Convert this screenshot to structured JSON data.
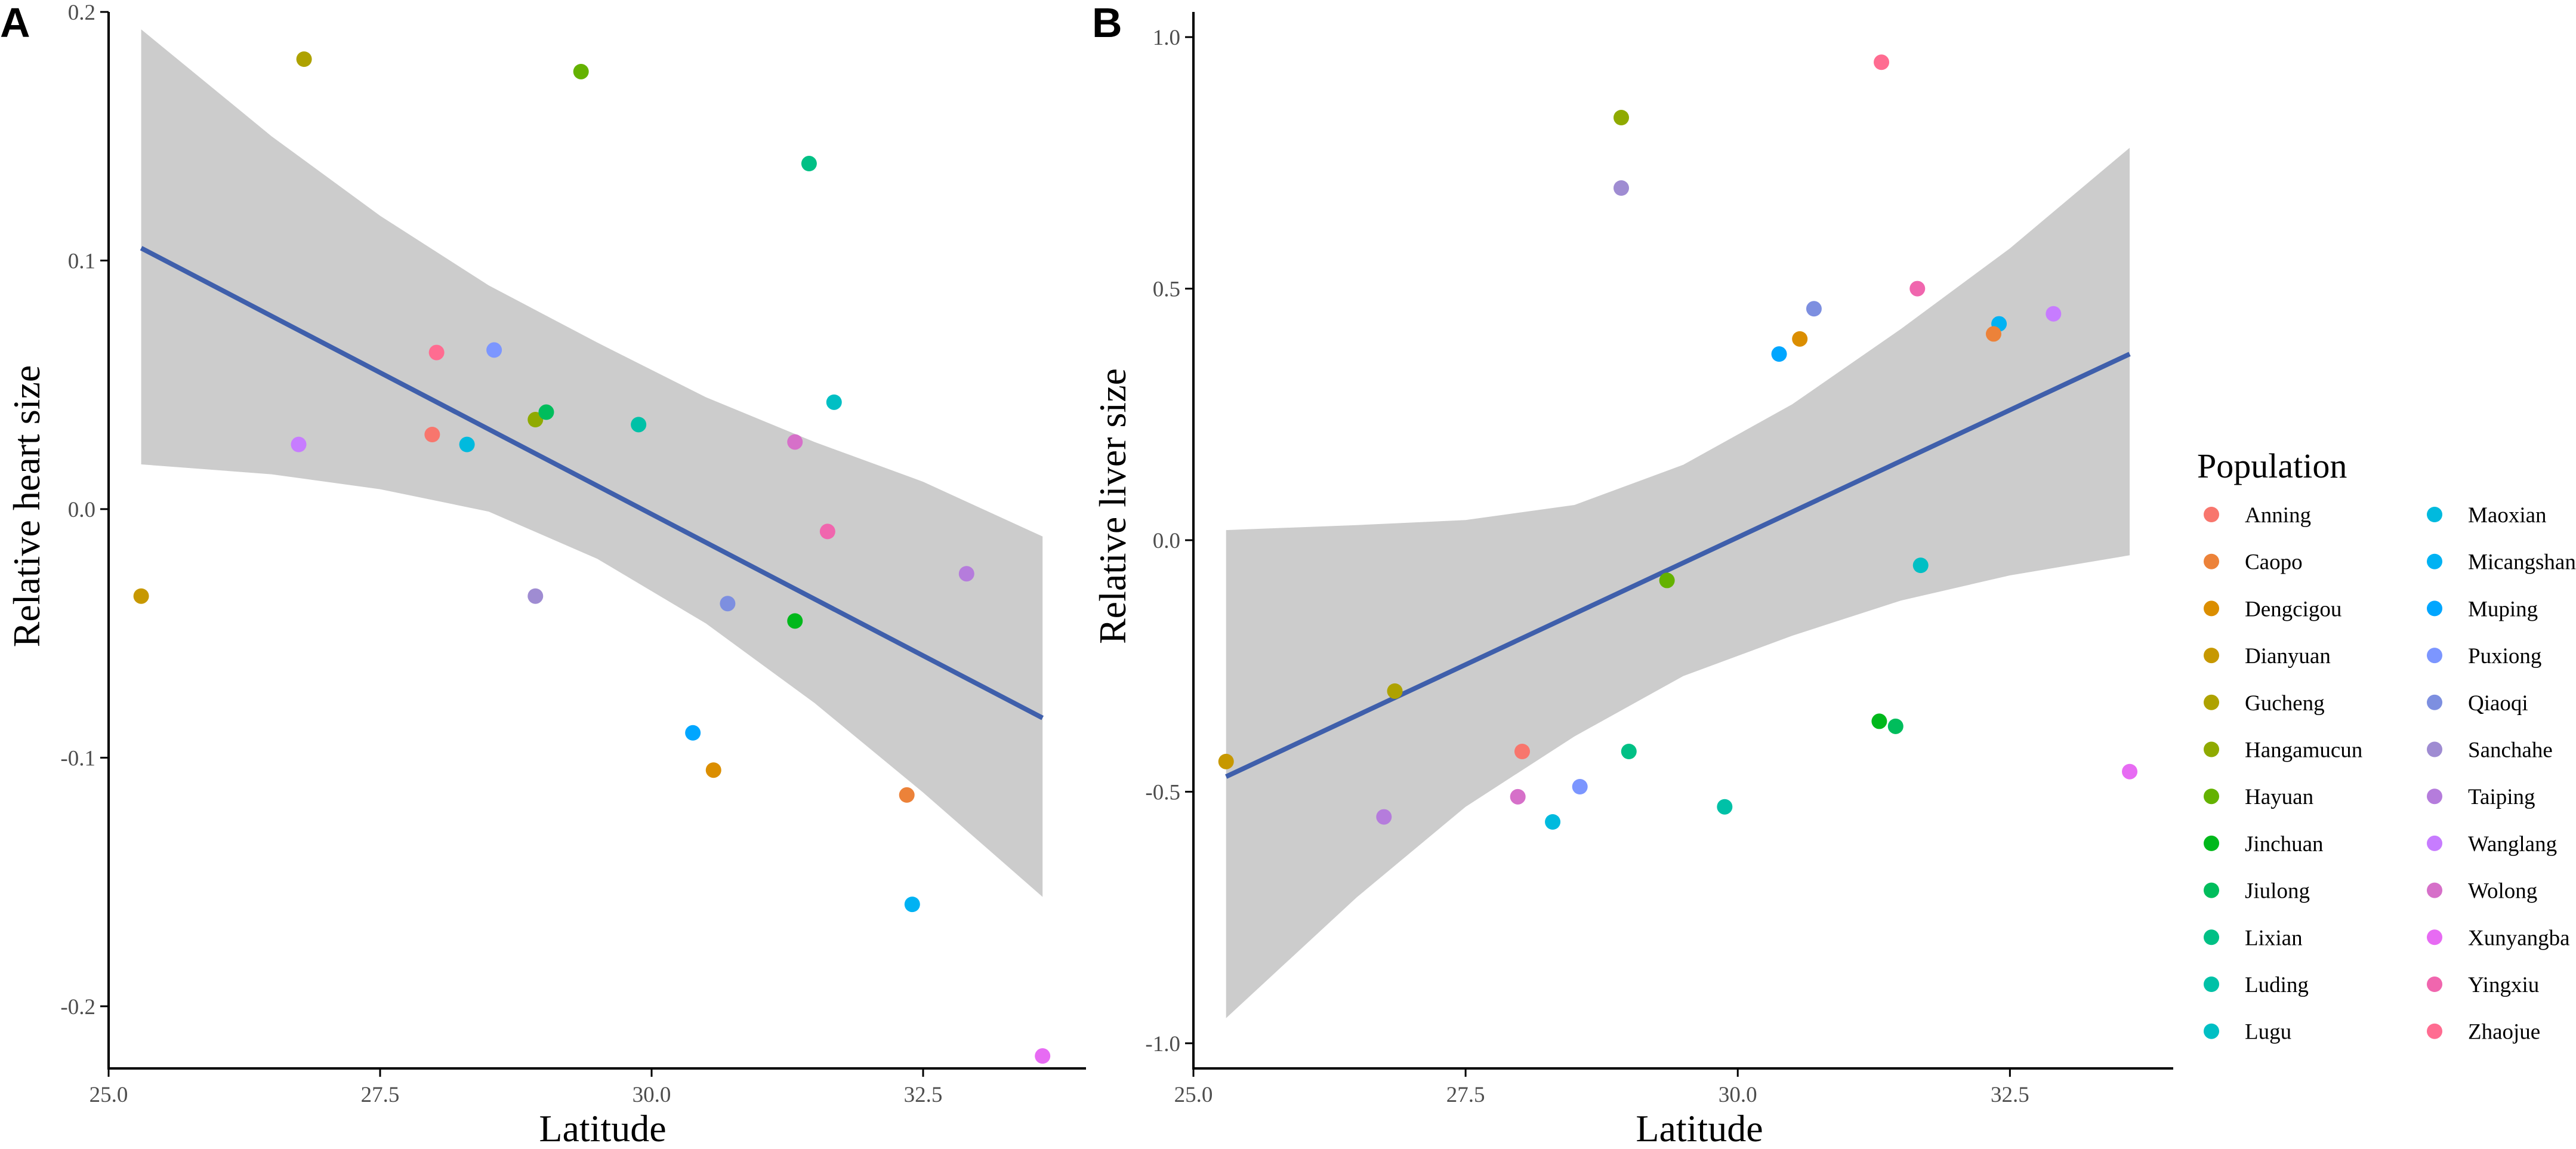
{
  "chart_data": [
    {
      "panel": "A",
      "type": "scatter",
      "xlabel": "Latitude",
      "ylabel": "Relative heart size",
      "xlim": [
        25.0,
        34.0
      ],
      "ylim": [
        -0.225,
        0.2
      ],
      "xticks": [
        25.0,
        27.5,
        30.0,
        32.5
      ],
      "xtick_labels": [
        "25.0",
        "27.5",
        "30.0",
        "32.5"
      ],
      "yticks": [
        -0.2,
        -0.1,
        0.0,
        0.1,
        0.2
      ],
      "ytick_labels": [
        "-0.2",
        "-0.1",
        "0.0",
        "0.1",
        "0.2"
      ],
      "fit": {
        "x": [
          25.3,
          33.6
        ],
        "y": [
          0.105,
          -0.084
        ]
      },
      "band": {
        "x": [
          25.3,
          26.5,
          27.5,
          28.5,
          29.5,
          30.5,
          31.5,
          32.5,
          33.6
        ],
        "upper": [
          0.193,
          0.15,
          0.118,
          0.09,
          0.067,
          0.045,
          0.027,
          0.011,
          -0.011
        ],
        "lower": [
          0.018,
          0.014,
          0.008,
          -0.001,
          -0.02,
          -0.046,
          -0.078,
          -0.114,
          -0.156
        ]
      },
      "points": [
        {
          "population": "Anning",
          "x": 27.98,
          "y": 0.03
        },
        {
          "population": "Dianyuan",
          "x": 25.3,
          "y": -0.035
        },
        {
          "population": "Gucheng",
          "x": 26.8,
          "y": 0.181
        },
        {
          "population": "Hayuan",
          "x": 29.35,
          "y": 0.176
        },
        {
          "population": "Lixian",
          "x": 31.45,
          "y": 0.139
        },
        {
          "population": "Zhaojue",
          "x": 28.02,
          "y": 0.063
        },
        {
          "population": "Puxiong",
          "x": 28.55,
          "y": 0.064
        },
        {
          "population": "Wanglang",
          "x": 26.75,
          "y": 0.026
        },
        {
          "population": "Maoxian",
          "x": 28.3,
          "y": 0.026
        },
        {
          "population": "Hangamucun",
          "x": 28.93,
          "y": 0.036
        },
        {
          "population": "Jiulong",
          "x": 29.03,
          "y": 0.039
        },
        {
          "population": "Luding",
          "x": 29.88,
          "y": 0.034
        },
        {
          "population": "Lugu",
          "x": 31.68,
          "y": 0.043
        },
        {
          "population": "Wolong",
          "x": 31.32,
          "y": 0.027
        },
        {
          "population": "Yingxiu",
          "x": 31.62,
          "y": -0.009
        },
        {
          "population": "Taiping",
          "x": 32.9,
          "y": -0.026
        },
        {
          "population": "Sanchahe",
          "x": 28.93,
          "y": -0.035
        },
        {
          "population": "Qiaoqi",
          "x": 30.7,
          "y": -0.038
        },
        {
          "population": "Jinchuan",
          "x": 31.32,
          "y": -0.045
        },
        {
          "population": "Muping",
          "x": 30.38,
          "y": -0.09
        },
        {
          "population": "Dengcigou",
          "x": 30.57,
          "y": -0.105
        },
        {
          "population": "Caopo",
          "x": 32.35,
          "y": -0.115
        },
        {
          "population": "Micangshan",
          "x": 32.4,
          "y": -0.159
        },
        {
          "population": "Xunyangba",
          "x": 33.6,
          "y": -0.22
        }
      ]
    },
    {
      "panel": "B",
      "type": "scatter",
      "xlabel": "Latitude",
      "ylabel": "Relative liver size",
      "xlim": [
        25.0,
        34.0
      ],
      "ylim": [
        -1.05,
        1.05
      ],
      "xticks": [
        25.0,
        27.5,
        30.0,
        32.5
      ],
      "xtick_labels": [
        "25.0",
        "27.5",
        "30.0",
        "32.5"
      ],
      "yticks": [
        -1.0,
        -0.5,
        0.0,
        0.5,
        1.0
      ],
      "ytick_labels": [
        "-1.0",
        "-0.5",
        "0.0",
        "0.5",
        "1.0"
      ],
      "fit": {
        "x": [
          25.3,
          33.6
        ],
        "y": [
          -0.47,
          0.37
        ]
      },
      "band": {
        "x": [
          25.3,
          26.5,
          27.5,
          28.5,
          29.5,
          30.5,
          31.5,
          32.5,
          33.6
        ],
        "upper": [
          0.02,
          0.03,
          0.04,
          0.07,
          0.15,
          0.27,
          0.42,
          0.58,
          0.78
        ],
        "lower": [
          -0.95,
          -0.71,
          -0.53,
          -0.39,
          -0.27,
          -0.19,
          -0.12,
          -0.07,
          -0.03
        ]
      },
      "points": [
        {
          "population": "Zhaojue",
          "x": 31.32,
          "y": 0.95
        },
        {
          "population": "Hangamucun",
          "x": 28.93,
          "y": 0.84
        },
        {
          "population": "Sanchahe",
          "x": 28.93,
          "y": 0.7
        },
        {
          "population": "Yingxiu",
          "x": 31.65,
          "y": 0.5
        },
        {
          "population": "Qiaoqi",
          "x": 30.7,
          "y": 0.46
        },
        {
          "population": "Wanglang",
          "x": 32.9,
          "y": 0.45
        },
        {
          "population": "Micangshan",
          "x": 32.4,
          "y": 0.43
        },
        {
          "population": "Caopo",
          "x": 32.35,
          "y": 0.41
        },
        {
          "population": "Dengcigou",
          "x": 30.57,
          "y": 0.4
        },
        {
          "population": "Muping",
          "x": 30.38,
          "y": 0.37
        },
        {
          "population": "Lugu",
          "x": 31.68,
          "y": -0.05
        },
        {
          "population": "Hayuan",
          "x": 29.35,
          "y": -0.08
        },
        {
          "population": "Gucheng",
          "x": 26.85,
          "y": -0.3
        },
        {
          "population": "Jinchuan",
          "x": 31.3,
          "y": -0.36
        },
        {
          "population": "Jiulong",
          "x": 31.45,
          "y": -0.37
        },
        {
          "population": "Anning",
          "x": 28.02,
          "y": -0.42
        },
        {
          "population": "Lixian",
          "x": 29.0,
          "y": -0.42
        },
        {
          "population": "Dianyuan",
          "x": 25.3,
          "y": -0.44
        },
        {
          "population": "Xunyangba",
          "x": 33.6,
          "y": -0.46
        },
        {
          "population": "Puxiong",
          "x": 28.55,
          "y": -0.49
        },
        {
          "population": "Wolong",
          "x": 27.98,
          "y": -0.51
        },
        {
          "population": "Luding",
          "x": 29.88,
          "y": -0.53
        },
        {
          "population": "Taiping",
          "x": 26.75,
          "y": -0.55
        },
        {
          "population": "Maoxian",
          "x": 28.3,
          "y": -0.56
        }
      ]
    }
  ],
  "legend": {
    "title": "Population",
    "entries": [
      {
        "label": "Anning",
        "color": "#F8766D"
      },
      {
        "label": "Caopo",
        "color": "#EC8239"
      },
      {
        "label": "Dengcigou",
        "color": "#DB8E00"
      },
      {
        "label": "Dianyuan",
        "color": "#C79800"
      },
      {
        "label": "Gucheng",
        "color": "#AEA200"
      },
      {
        "label": "Hangamucun",
        "color": "#8FAA00"
      },
      {
        "label": "Hayuan",
        "color": "#64B200"
      },
      {
        "label": "Jinchuan",
        "color": "#00B81B"
      },
      {
        "label": "Jiulong",
        "color": "#00BD5C"
      },
      {
        "label": "Lixian",
        "color": "#00C085"
      },
      {
        "label": "Luding",
        "color": "#00C1A7"
      },
      {
        "label": "Lugu",
        "color": "#00BFC4"
      },
      {
        "label": "Maoxian",
        "color": "#00BADE"
      },
      {
        "label": "Micangshan",
        "color": "#00B2F3"
      },
      {
        "label": "Muping",
        "color": "#00A6FF"
      },
      {
        "label": "Puxiong",
        "color": "#7C96FF"
      },
      {
        "label": "Qiaoqi",
        "color": "#7D8FE0"
      },
      {
        "label": "Sanchahe",
        "color": "#9F8CD2"
      },
      {
        "label": "Taiping",
        "color": "#B57CDC"
      },
      {
        "label": "Wanglang",
        "color": "#C77CFF"
      },
      {
        "label": "Wolong",
        "color": "#D670C9"
      },
      {
        "label": "Xunyangba",
        "color": "#E76BF3"
      },
      {
        "label": "Yingxiu",
        "color": "#F066AE"
      },
      {
        "label": "Zhaojue",
        "color": "#FF6C91"
      }
    ]
  },
  "panel_labels": [
    "A",
    "B"
  ],
  "style": {
    "band_color": "#cccccc",
    "line_color": "#3f5fab",
    "axis_color": "#000000"
  }
}
